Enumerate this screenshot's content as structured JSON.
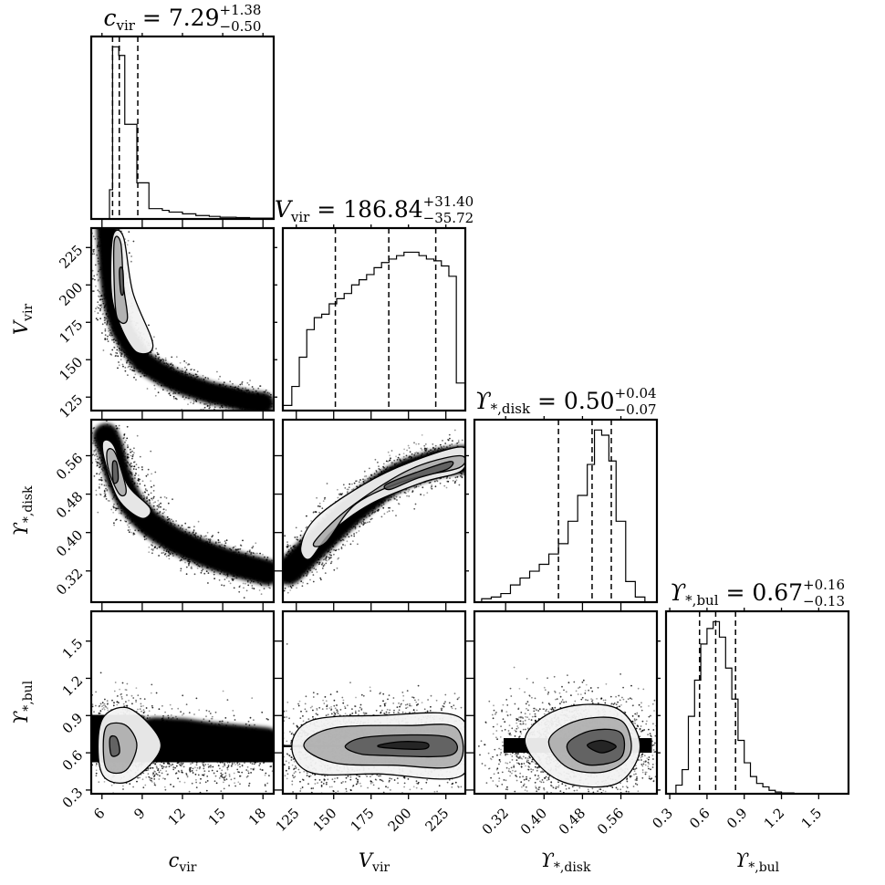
{
  "chart_data": {
    "type": "corner",
    "parameters": [
      {
        "key": "cvir",
        "label": "c",
        "label_sub": "vir",
        "title": {
          "symbol": "c",
          "sub": "vir",
          "eq": " = 7.29",
          "plus": "+1.38",
          "minus": "−0.50"
        },
        "range": [
          5.2,
          18.8
        ],
        "ticks": [
          6,
          9,
          12,
          15,
          18
        ],
        "tick_labels": [
          "6",
          "9",
          "12",
          "15",
          "18"
        ],
        "quantiles": [
          6.79,
          7.29,
          8.67
        ],
        "hist_edges": [
          5.2,
          6.56,
          6.79,
          7.25,
          7.7,
          8.6,
          9.5,
          10.5,
          11.0,
          12.0,
          13.0,
          14.0,
          14.8,
          16.0,
          17.0,
          18.8
        ],
        "hist_heights": [
          0.0,
          0.17,
          1.0,
          0.95,
          0.55,
          0.21,
          0.06,
          0.05,
          0.04,
          0.03,
          0.02,
          0.015,
          0.01,
          0.008,
          0.005
        ]
      },
      {
        "key": "vvir",
        "label": "V",
        "label_sub": "vir",
        "title": {
          "symbol": "V",
          "sub": "vir",
          "eq": " = 186.84",
          "plus": "+31.40",
          "minus": "−35.72"
        },
        "range": [
          116,
          238
        ],
        "ticks": [
          125,
          150,
          175,
          200,
          225
        ],
        "tick_labels": [
          "125",
          "150",
          "175",
          "200",
          "225"
        ],
        "quantiles": [
          151.12,
          186.84,
          218.24
        ],
        "hist_edges": [
          116,
          122,
          127,
          132,
          137,
          142,
          147,
          152,
          157,
          162,
          167,
          172,
          177,
          182,
          187,
          192,
          197,
          202,
          207,
          212,
          217,
          222,
          227,
          232,
          238
        ],
        "hist_heights": [
          0.03,
          0.14,
          0.31,
          0.47,
          0.54,
          0.56,
          0.62,
          0.65,
          0.68,
          0.73,
          0.76,
          0.79,
          0.83,
          0.86,
          0.88,
          0.9,
          0.92,
          0.92,
          0.9,
          0.88,
          0.87,
          0.84,
          0.78,
          0.16
        ]
      },
      {
        "key": "ydisk",
        "label": "ϒ",
        "label_sub": "*,disk",
        "title": {
          "symbol": "ϒ",
          "sub": "*,disk",
          "eq": " = 0.50",
          "plus": "+0.04",
          "minus": "−0.07"
        },
        "range": [
          0.255,
          0.635
        ],
        "ticks": [
          0.32,
          0.4,
          0.48,
          0.56
        ],
        "tick_labels": [
          "0.32",
          "0.40",
          "0.48",
          "0.56"
        ],
        "quantiles": [
          0.43,
          0.5,
          0.54
        ],
        "hist_edges": [
          0.255,
          0.27,
          0.29,
          0.31,
          0.33,
          0.35,
          0.37,
          0.39,
          0.41,
          0.43,
          0.45,
          0.47,
          0.49,
          0.505,
          0.52,
          0.535,
          0.55,
          0.57,
          0.59,
          0.61,
          0.635
        ],
        "hist_heights": [
          0.0,
          0.02,
          0.03,
          0.05,
          0.1,
          0.14,
          0.18,
          0.22,
          0.28,
          0.34,
          0.47,
          0.62,
          0.8,
          1.0,
          0.97,
          0.82,
          0.47,
          0.12,
          0.03,
          0.0
        ]
      },
      {
        "key": "ybul",
        "label": "ϒ",
        "label_sub": "*,bul",
        "title": {
          "symbol": "ϒ",
          "sub": "*,bul",
          "eq": " = 0.67",
          "plus": "+0.16",
          "minus": "−0.13"
        },
        "range": [
          0.27,
          1.74
        ],
        "ticks": [
          0.3,
          0.6,
          0.9,
          1.2,
          1.5
        ],
        "tick_labels": [
          "0.3",
          "0.6",
          "0.9",
          "1.2",
          "1.5"
        ],
        "quantiles": [
          0.54,
          0.67,
          0.83
        ],
        "hist_edges": [
          0.27,
          0.35,
          0.4,
          0.45,
          0.5,
          0.55,
          0.6,
          0.65,
          0.7,
          0.75,
          0.8,
          0.85,
          0.9,
          0.95,
          1.0,
          1.05,
          1.1,
          1.15,
          1.2,
          1.3,
          1.74
        ],
        "hist_heights": [
          0.0,
          0.05,
          0.14,
          0.45,
          0.66,
          0.87,
          0.96,
          1.0,
          0.91,
          0.73,
          0.55,
          0.31,
          0.18,
          0.1,
          0.06,
          0.04,
          0.02,
          0.01,
          0.005,
          0.0
        ]
      }
    ],
    "pairs": [
      {
        "x": "cvir",
        "y": "vvir",
        "points": [
          [
            6.4,
            237
          ],
          [
            6.5,
            225
          ],
          [
            6.6,
            210
          ],
          [
            6.8,
            195
          ],
          [
            7,
            185
          ],
          [
            7.2,
            178
          ],
          [
            7.5,
            170
          ],
          [
            8,
            162
          ],
          [
            8.5,
            155
          ],
          [
            9,
            149
          ],
          [
            10,
            143
          ],
          [
            11,
            138
          ],
          [
            12,
            134
          ],
          [
            13,
            131
          ],
          [
            14,
            128
          ],
          [
            15,
            126
          ],
          [
            16,
            124
          ],
          [
            17,
            122
          ],
          [
            18,
            121
          ]
        ],
        "width": [
          11,
          9
        ],
        "contours": [
          [
            [
              6.8,
              232
            ],
            [
              7.6,
              232
            ],
            [
              8.3,
              195
            ],
            [
              9.8,
              160
            ],
            [
              8.6,
              155
            ],
            [
              7.4,
              172
            ],
            [
              6.7,
              195
            ]
          ],
          [
            [
              6.9,
              228
            ],
            [
              7.4,
              228
            ],
            [
              7.6,
              200
            ],
            [
              7.9,
              178
            ],
            [
              7.4,
              175
            ],
            [
              7,
              185
            ]
          ],
          [
            [
              7.3,
              210
            ],
            [
              7.55,
              210
            ],
            [
              7.6,
              195
            ],
            [
              7.4,
              195
            ]
          ]
        ]
      },
      {
        "x": "cvir",
        "y": "ydisk",
        "points": [
          [
            6.3,
            0.6
          ],
          [
            6.6,
            0.58
          ],
          [
            6.8,
            0.56
          ],
          [
            7,
            0.535
          ],
          [
            7.3,
            0.51
          ],
          [
            7.7,
            0.485
          ],
          [
            8.2,
            0.46
          ],
          [
            8.8,
            0.44
          ],
          [
            9.5,
            0.42
          ],
          [
            10.5,
            0.4
          ],
          [
            11.5,
            0.383
          ],
          [
            12.5,
            0.37
          ],
          [
            13.5,
            0.358
          ],
          [
            14.5,
            0.347
          ],
          [
            15.5,
            0.338
          ],
          [
            16.5,
            0.33
          ],
          [
            17.5,
            0.323
          ],
          [
            18.3,
            0.317
          ]
        ],
        "width": [
          13,
          11
        ],
        "contours": [
          [
            [
              6.1,
              0.59
            ],
            [
              6.9,
              0.58
            ],
            [
              7.9,
              0.5
            ],
            [
              9.6,
              0.45
            ],
            [
              8.9,
              0.43
            ],
            [
              7.2,
              0.47
            ],
            [
              6.2,
              0.55
            ]
          ],
          [
            [
              6.4,
              0.57
            ],
            [
              7,
              0.565
            ],
            [
              7.8,
              0.49
            ],
            [
              7.3,
              0.48
            ],
            [
              6.5,
              0.53
            ]
          ],
          [
            [
              6.8,
              0.545
            ],
            [
              7.1,
              0.545
            ],
            [
              7.2,
              0.51
            ],
            [
              6.85,
              0.505
            ]
          ]
        ]
      },
      {
        "x": "cvir",
        "y": "ybul",
        "points": [
          [
            6.3,
            0.6
          ],
          [
            6.5,
            0.66
          ],
          [
            6.8,
            0.75
          ],
          [
            7,
            0.85
          ],
          [
            7.5,
            0.68
          ],
          [
            8,
            0.62
          ],
          [
            9,
            0.64
          ],
          [
            10,
            0.66
          ],
          [
            12,
            0.65
          ],
          [
            14,
            0.62
          ],
          [
            16,
            0.6
          ],
          [
            18,
            0.58
          ]
        ],
        "width": [
          28,
          22
        ],
        "contours": [
          [
            [
              6.2,
              0.9
            ],
            [
              8.2,
              0.95
            ],
            [
              10.4,
              0.66
            ],
            [
              8.2,
              0.38
            ],
            [
              6.2,
              0.4
            ],
            [
              5.7,
              0.65
            ]
          ],
          [
            [
              6.4,
              0.82
            ],
            [
              7.8,
              0.82
            ],
            [
              8.6,
              0.66
            ],
            [
              7.8,
              0.46
            ],
            [
              6.4,
              0.46
            ],
            [
              6.1,
              0.65
            ]
          ],
          [
            [
              6.6,
              0.72
            ],
            [
              7.1,
              0.72
            ],
            [
              7.3,
              0.6
            ],
            [
              6.7,
              0.58
            ]
          ]
        ]
      },
      {
        "x": "vvir",
        "y": "ydisk",
        "points": [
          [
            120,
            0.32
          ],
          [
            125,
            0.335
          ],
          [
            130,
            0.35
          ],
          [
            140,
            0.38
          ],
          [
            150,
            0.41
          ],
          [
            160,
            0.44
          ],
          [
            170,
            0.465
          ],
          [
            180,
            0.49
          ],
          [
            190,
            0.51
          ],
          [
            200,
            0.525
          ],
          [
            210,
            0.535
          ],
          [
            220,
            0.545
          ],
          [
            230,
            0.55
          ],
          [
            236,
            0.552
          ]
        ],
        "width": [
          14,
          12
        ],
        "contours": [
          [
            [
              128,
              0.37
            ],
            [
              138,
              0.43
            ],
            [
              170,
              0.5
            ],
            [
              200,
              0.545
            ],
            [
              236,
              0.578
            ],
            [
              236,
              0.53
            ],
            [
              210,
              0.505
            ],
            [
              175,
              0.46
            ],
            [
              148,
              0.4
            ],
            [
              134,
              0.345
            ]
          ],
          [
            [
              137,
              0.38
            ],
            [
              160,
              0.45
            ],
            [
              200,
              0.53
            ],
            [
              234,
              0.56
            ],
            [
              234,
              0.535
            ],
            [
              200,
              0.51
            ],
            [
              165,
              0.46
            ],
            [
              145,
              0.38
            ]
          ],
          [
            [
              185,
              0.5
            ],
            [
              205,
              0.525
            ],
            [
              228,
              0.548
            ],
            [
              226,
              0.532
            ],
            [
              205,
              0.512
            ],
            [
              188,
              0.49
            ]
          ]
        ]
      },
      {
        "x": "vvir",
        "y": "ybul",
        "points": [
          [
            125,
            0.65
          ],
          [
            140,
            0.66
          ],
          [
            160,
            0.66
          ],
          [
            180,
            0.66
          ],
          [
            200,
            0.66
          ],
          [
            220,
            0.66
          ],
          [
            235,
            0.65
          ]
        ],
        "width": [
          24,
          26
        ],
        "contours": [
          [
            [
              122,
              0.65
            ],
            [
              135,
              0.86
            ],
            [
              180,
              0.9
            ],
            [
              235,
              0.88
            ],
            [
              236,
              0.42
            ],
            [
              180,
              0.43
            ],
            [
              135,
              0.44
            ]
          ],
          [
            [
              130,
              0.66
            ],
            [
              150,
              0.8
            ],
            [
              200,
              0.82
            ],
            [
              232,
              0.8
            ],
            [
              232,
              0.5
            ],
            [
              190,
              0.5
            ],
            [
              150,
              0.52
            ]
          ],
          [
            [
              158,
              0.66
            ],
            [
              175,
              0.73
            ],
            [
              225,
              0.73
            ],
            [
              228,
              0.58
            ],
            [
              180,
              0.58
            ],
            [
              165,
              0.6
            ]
          ],
          [
            [
              180,
              0.66
            ],
            [
              195,
              0.69
            ],
            [
              212,
              0.68
            ],
            [
              210,
              0.63
            ],
            [
              185,
              0.64
            ]
          ]
        ]
      },
      {
        "x": "ydisk",
        "y": "ybul",
        "points": [
          [
            0.36,
            0.65
          ],
          [
            0.4,
            0.66
          ],
          [
            0.45,
            0.7
          ],
          [
            0.5,
            0.68
          ],
          [
            0.54,
            0.64
          ],
          [
            0.58,
            0.62
          ]
        ],
        "width": [
          30,
          28
        ],
        "contours": [
          [
            [
              0.36,
              0.7
            ],
            [
              0.43,
              0.95
            ],
            [
              0.55,
              0.96
            ],
            [
              0.6,
              0.65
            ],
            [
              0.55,
              0.35
            ],
            [
              0.43,
              0.38
            ]
          ],
          [
            [
              0.41,
              0.7
            ],
            [
              0.47,
              0.86
            ],
            [
              0.56,
              0.86
            ],
            [
              0.58,
              0.6
            ],
            [
              0.53,
              0.45
            ],
            [
              0.45,
              0.48
            ]
          ],
          [
            [
              0.45,
              0.68
            ],
            [
              0.5,
              0.78
            ],
            [
              0.56,
              0.76
            ],
            [
              0.56,
              0.56
            ],
            [
              0.5,
              0.5
            ],
            [
              0.46,
              0.56
            ]
          ],
          [
            [
              0.49,
              0.66
            ],
            [
              0.52,
              0.7
            ],
            [
              0.55,
              0.65
            ],
            [
              0.52,
              0.6
            ]
          ]
        ]
      }
    ]
  }
}
